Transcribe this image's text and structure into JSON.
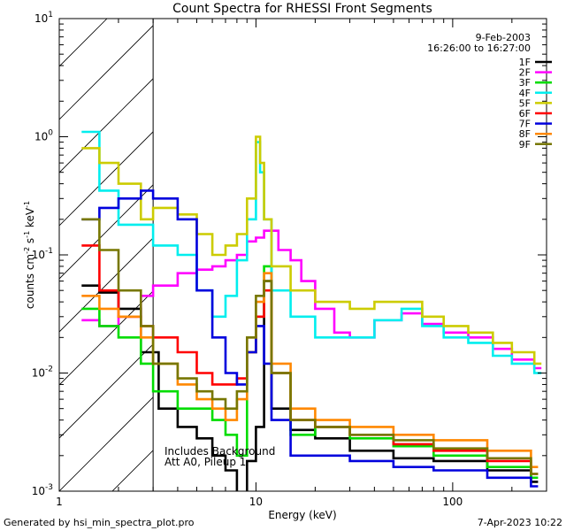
{
  "chart_data": {
    "type": "line",
    "title": "Count Spectra for RHESSI Front Segments",
    "xlabel": "Energy (keV)",
    "ylabel": "counts cm-2 s-1 keV-1",
    "x_scale": "log",
    "y_scale": "log",
    "xlim": [
      1,
      300
    ],
    "ylim": [
      0.001,
      10
    ],
    "x_ticks": [
      {
        "v": 1,
        "label": "1"
      },
      {
        "v": 10,
        "label": "10"
      },
      {
        "v": 100,
        "label": "100"
      }
    ],
    "y_ticks": [
      {
        "v": 10,
        "base": "10",
        "exp": "1"
      },
      {
        "v": 1,
        "base": "10",
        "exp": "0"
      },
      {
        "v": 0.1,
        "base": "10",
        "exp": "-1"
      },
      {
        "v": 0.01,
        "base": "10",
        "exp": "-2"
      },
      {
        "v": 0.001,
        "base": "10",
        "exp": "-3"
      }
    ],
    "hatched_region": [
      1,
      3
    ],
    "legend": {
      "placement": "top-right",
      "date": "9-Feb-2003",
      "time_range": "16:26:00 to 16:27:00"
    },
    "annotations": [
      "Includes Background",
      "Att A0, Pileup 1"
    ],
    "series": [
      {
        "name": "1F",
        "color": "#000000",
        "points": [
          [
            1.3,
            0.055
          ],
          [
            1.6,
            0.048
          ],
          [
            2.0,
            0.035
          ],
          [
            2.6,
            0.015
          ],
          [
            3.2,
            0.005
          ],
          [
            4.0,
            0.0035
          ],
          [
            5.0,
            0.0028
          ],
          [
            6.0,
            0.002
          ],
          [
            7.0,
            0.0015
          ],
          [
            8.0,
            0.0009
          ],
          [
            9.0,
            0.0018
          ],
          [
            10.0,
            0.0035
          ],
          [
            11.0,
            0.06
          ],
          [
            12.0,
            0.005
          ],
          [
            15.0,
            0.0033
          ],
          [
            20.0,
            0.0028
          ],
          [
            30.0,
            0.0022
          ],
          [
            50.0,
            0.0019
          ],
          [
            80.0,
            0.0018
          ],
          [
            150.0,
            0.0015
          ],
          [
            250.0,
            0.0012
          ]
        ]
      },
      {
        "name": "2F",
        "color": "#ff00ff",
        "points": [
          [
            1.3,
            0.028
          ],
          [
            1.6,
            0.025
          ],
          [
            2.0,
            0.03
          ],
          [
            2.6,
            0.045
          ],
          [
            3.0,
            0.055
          ],
          [
            4.0,
            0.07
          ],
          [
            5.0,
            0.075
          ],
          [
            6.0,
            0.08
          ],
          [
            7.0,
            0.09
          ],
          [
            8.0,
            0.1
          ],
          [
            9.0,
            0.13
          ],
          [
            10.0,
            0.14
          ],
          [
            11.0,
            0.16
          ],
          [
            13.0,
            0.11
          ],
          [
            15.0,
            0.09
          ],
          [
            17.0,
            0.06
          ],
          [
            20.0,
            0.035
          ],
          [
            25.0,
            0.022
          ],
          [
            30.0,
            0.02
          ],
          [
            40.0,
            0.028
          ],
          [
            55.0,
            0.032
          ],
          [
            70.0,
            0.026
          ],
          [
            90.0,
            0.022
          ],
          [
            120.0,
            0.02
          ],
          [
            160.0,
            0.016
          ],
          [
            200.0,
            0.013
          ],
          [
            260.0,
            0.011
          ]
        ]
      },
      {
        "name": "3F",
        "color": "#00dd00",
        "points": [
          [
            1.3,
            0.035
          ],
          [
            1.6,
            0.025
          ],
          [
            2.0,
            0.02
          ],
          [
            2.6,
            0.012
          ],
          [
            3.0,
            0.007
          ],
          [
            4.0,
            0.005
          ],
          [
            5.0,
            0.005
          ],
          [
            6.0,
            0.004
          ],
          [
            7.0,
            0.003
          ],
          [
            8.0,
            0.002
          ],
          [
            9.0,
            0.015
          ],
          [
            10.0,
            0.03
          ],
          [
            11.0,
            0.08
          ],
          [
            12.0,
            0.01
          ],
          [
            15.0,
            0.003
          ],
          [
            20.0,
            0.0035
          ],
          [
            30.0,
            0.0028
          ],
          [
            50.0,
            0.0024
          ],
          [
            80.0,
            0.002
          ],
          [
            150.0,
            0.0016
          ],
          [
            250.0,
            0.0013
          ]
        ]
      },
      {
        "name": "4F",
        "color": "#00eeee",
        "points": [
          [
            1.3,
            1.1
          ],
          [
            1.6,
            0.35
          ],
          [
            2.0,
            0.18
          ],
          [
            2.6,
            0.18
          ],
          [
            3.0,
            0.12
          ],
          [
            4.0,
            0.1
          ],
          [
            5.0,
            0.05
          ],
          [
            6.0,
            0.03
          ],
          [
            7.0,
            0.045
          ],
          [
            8.0,
            0.09
          ],
          [
            9.0,
            0.2
          ],
          [
            10.0,
            0.9
          ],
          [
            10.5,
            0.5
          ],
          [
            11.0,
            0.2
          ],
          [
            12.0,
            0.05
          ],
          [
            15.0,
            0.03
          ],
          [
            20.0,
            0.02
          ],
          [
            30.0,
            0.02
          ],
          [
            40.0,
            0.028
          ],
          [
            55.0,
            0.035
          ],
          [
            70.0,
            0.025
          ],
          [
            90.0,
            0.02
          ],
          [
            120.0,
            0.018
          ],
          [
            160.0,
            0.014
          ],
          [
            200.0,
            0.012
          ],
          [
            260.0,
            0.01
          ]
        ]
      },
      {
        "name": "5F",
        "color": "#cccc00",
        "points": [
          [
            1.3,
            0.8
          ],
          [
            1.6,
            0.6
          ],
          [
            2.0,
            0.4
          ],
          [
            2.6,
            0.2
          ],
          [
            3.0,
            0.25
          ],
          [
            4.0,
            0.22
          ],
          [
            5.0,
            0.15
          ],
          [
            6.0,
            0.1
          ],
          [
            7.0,
            0.12
          ],
          [
            8.0,
            0.15
          ],
          [
            9.0,
            0.3
          ],
          [
            10.0,
            1.0
          ],
          [
            10.5,
            0.6
          ],
          [
            11.0,
            0.2
          ],
          [
            12.0,
            0.08
          ],
          [
            15.0,
            0.05
          ],
          [
            20.0,
            0.04
          ],
          [
            30.0,
            0.035
          ],
          [
            40.0,
            0.04
          ],
          [
            55.0,
            0.04
          ],
          [
            70.0,
            0.03
          ],
          [
            90.0,
            0.025
          ],
          [
            120.0,
            0.022
          ],
          [
            160.0,
            0.018
          ],
          [
            200.0,
            0.015
          ],
          [
            260.0,
            0.012
          ]
        ]
      },
      {
        "name": "6F",
        "color": "#ff0000",
        "points": [
          [
            1.3,
            0.12
          ],
          [
            1.6,
            0.05
          ],
          [
            2.0,
            0.03
          ],
          [
            2.6,
            0.025
          ],
          [
            3.0,
            0.02
          ],
          [
            4.0,
            0.015
          ],
          [
            5.0,
            0.01
          ],
          [
            6.0,
            0.008
          ],
          [
            7.0,
            0.008
          ],
          [
            8.0,
            0.009
          ],
          [
            9.0,
            0.015
          ],
          [
            10.0,
            0.03
          ],
          [
            11.0,
            0.05
          ],
          [
            12.0,
            0.01
          ],
          [
            15.0,
            0.004
          ],
          [
            20.0,
            0.0035
          ],
          [
            30.0,
            0.003
          ],
          [
            50.0,
            0.0025
          ],
          [
            80.0,
            0.0022
          ],
          [
            150.0,
            0.0018
          ],
          [
            250.0,
            0.0014
          ]
        ]
      },
      {
        "name": "7F",
        "color": "#0000dd",
        "points": [
          [
            1.3,
            0.2
          ],
          [
            1.6,
            0.25
          ],
          [
            2.0,
            0.3
          ],
          [
            2.6,
            0.35
          ],
          [
            3.0,
            0.3
          ],
          [
            4.0,
            0.2
          ],
          [
            5.0,
            0.05
          ],
          [
            6.0,
            0.02
          ],
          [
            7.0,
            0.01
          ],
          [
            8.0,
            0.008
          ],
          [
            9.0,
            0.015
          ],
          [
            10.0,
            0.025
          ],
          [
            11.0,
            0.012
          ],
          [
            12.0,
            0.004
          ],
          [
            15.0,
            0.002
          ],
          [
            20.0,
            0.002
          ],
          [
            30.0,
            0.0018
          ],
          [
            50.0,
            0.0016
          ],
          [
            80.0,
            0.0015
          ],
          [
            150.0,
            0.0013
          ],
          [
            250.0,
            0.0011
          ]
        ]
      },
      {
        "name": "8F",
        "color": "#ff8800",
        "points": [
          [
            1.3,
            0.045
          ],
          [
            1.6,
            0.035
          ],
          [
            2.0,
            0.03
          ],
          [
            2.6,
            0.02
          ],
          [
            3.0,
            0.012
          ],
          [
            4.0,
            0.008
          ],
          [
            5.0,
            0.006
          ],
          [
            6.0,
            0.005
          ],
          [
            7.0,
            0.004
          ],
          [
            8.0,
            0.006
          ],
          [
            9.0,
            0.02
          ],
          [
            10.0,
            0.04
          ],
          [
            11.0,
            0.07
          ],
          [
            12.0,
            0.012
          ],
          [
            15.0,
            0.005
          ],
          [
            20.0,
            0.004
          ],
          [
            30.0,
            0.0035
          ],
          [
            50.0,
            0.003
          ],
          [
            80.0,
            0.0027
          ],
          [
            150.0,
            0.0022
          ],
          [
            250.0,
            0.0016
          ]
        ]
      },
      {
        "name": "9F",
        "color": "#777700",
        "points": [
          [
            1.3,
            0.2
          ],
          [
            1.6,
            0.11
          ],
          [
            2.0,
            0.05
          ],
          [
            2.6,
            0.025
          ],
          [
            3.0,
            0.012
          ],
          [
            4.0,
            0.009
          ],
          [
            5.0,
            0.007
          ],
          [
            6.0,
            0.006
          ],
          [
            7.0,
            0.005
          ],
          [
            8.0,
            0.007
          ],
          [
            9.0,
            0.02
          ],
          [
            10.0,
            0.045
          ],
          [
            11.0,
            0.06
          ],
          [
            12.0,
            0.01
          ],
          [
            15.0,
            0.004
          ],
          [
            20.0,
            0.0035
          ],
          [
            30.0,
            0.003
          ],
          [
            50.0,
            0.0027
          ],
          [
            80.0,
            0.0023
          ],
          [
            150.0,
            0.0019
          ],
          [
            250.0,
            0.0014
          ]
        ]
      }
    ]
  },
  "footer": {
    "generated_by": "Generated by hsi_min_spectra_plot.pro",
    "timestamp": "7-Apr-2023 10:22"
  }
}
